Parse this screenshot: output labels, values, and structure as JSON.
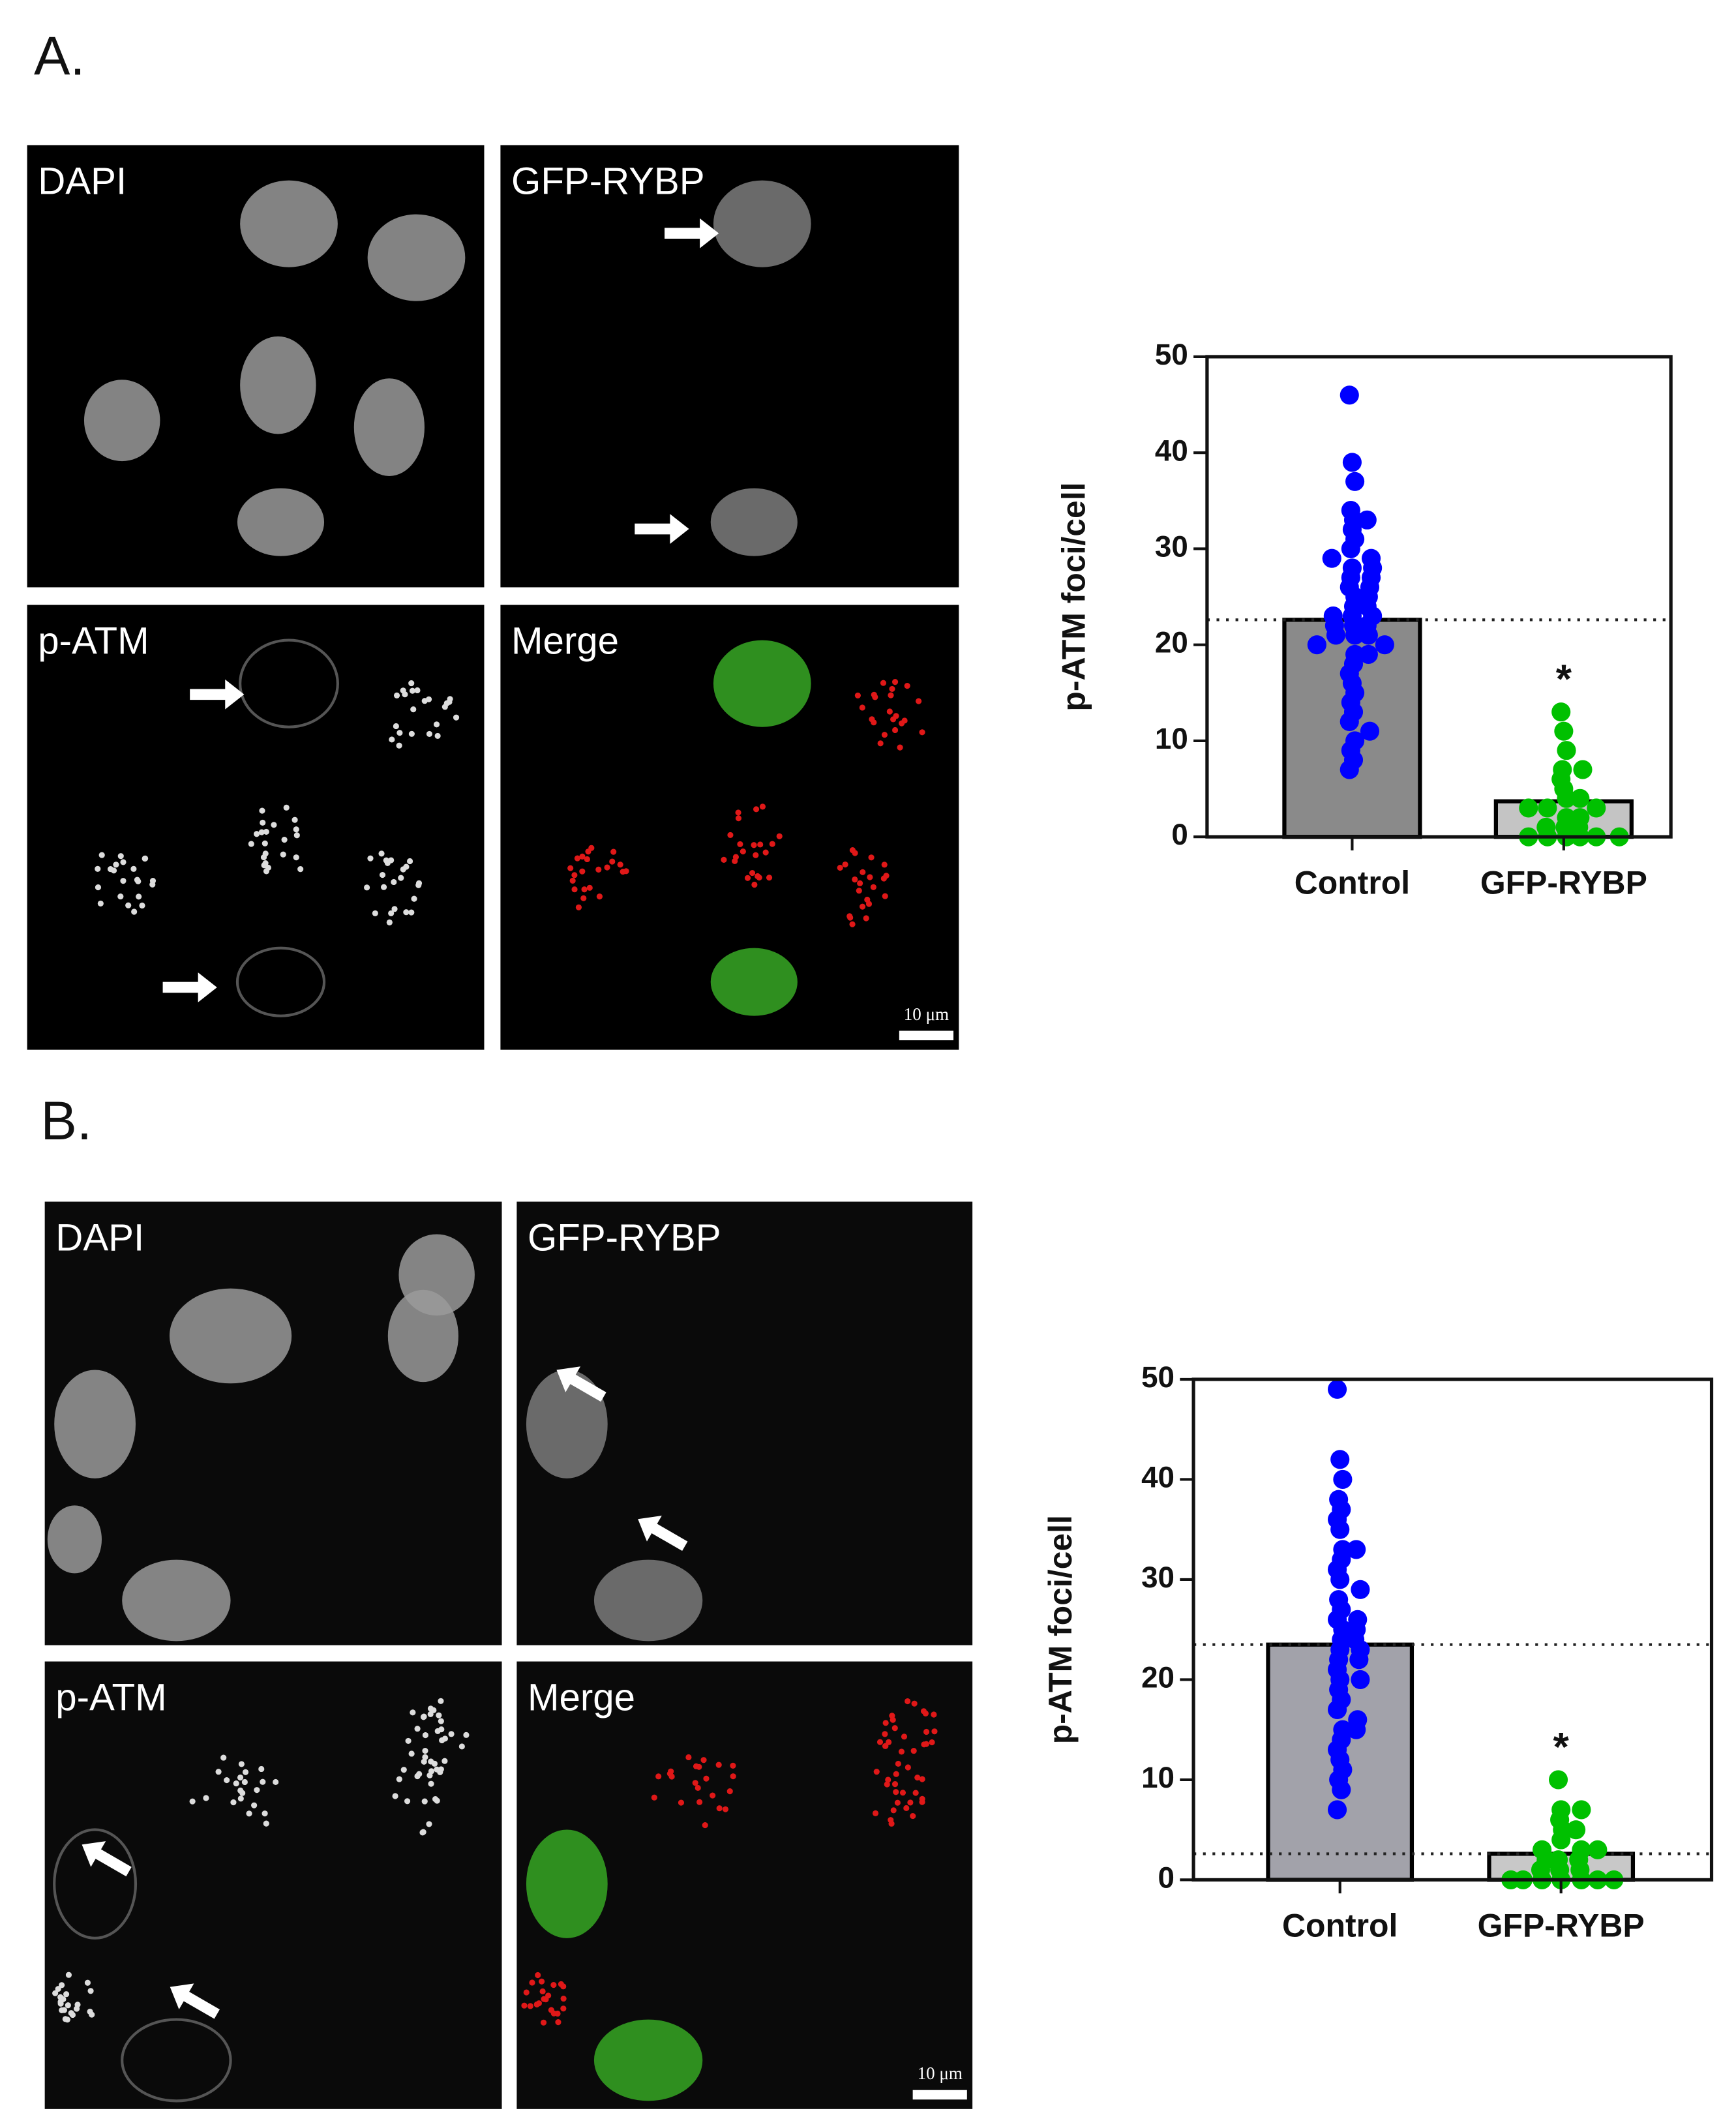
{
  "panels": [
    {
      "label": "A.",
      "images": [
        "DAPI",
        "GFP-RYBP",
        "p-ATM",
        "Merge"
      ],
      "scale_bar": "10 μm"
    },
    {
      "label": "B.",
      "images": [
        "DAPI",
        "GFP-RYBP",
        "p-ATM",
        "Merge"
      ],
      "scale_bar": "10 μm"
    }
  ],
  "chart_data": [
    {
      "type": "bar",
      "ylabel": "p-ATM foci/cell",
      "categories": [
        "Control",
        "GFP-RYBP"
      ],
      "values": [
        22.6,
        3.7
      ],
      "bar_colors": [
        "#8a8a8a",
        "#c4c4c4"
      ],
      "points": [
        [
          46,
          39,
          37,
          34,
          33,
          33,
          32,
          31,
          30,
          29,
          29,
          28,
          28,
          27,
          27,
          26,
          26,
          25,
          25,
          24,
          24,
          23,
          23,
          23,
          22,
          22,
          22,
          21,
          21,
          21,
          20,
          20,
          19,
          19,
          18,
          17,
          16,
          15,
          14,
          13,
          12,
          11,
          10,
          9,
          8,
          7
        ],
        [
          13,
          11,
          9,
          7,
          7,
          6,
          5,
          4,
          4,
          3,
          3,
          3,
          2,
          2,
          1,
          1,
          1,
          0,
          0,
          0,
          0,
          0,
          0
        ]
      ],
      "point_colors": [
        "#0000ff",
        "#00c000"
      ],
      "reference_lines": [
        22.6
      ],
      "annotation": "*",
      "ylim": [
        0,
        50
      ],
      "yticks": [
        0,
        10,
        20,
        30,
        40,
        50
      ]
    },
    {
      "type": "bar",
      "ylabel": "p-ATM foci/cell",
      "categories": [
        "Control",
        "GFP-RYBP"
      ],
      "values": [
        23.5,
        2.6
      ],
      "bar_colors": [
        "#a2a2aa",
        "#c8c8c8"
      ],
      "points": [
        [
          49,
          42,
          40,
          38,
          37,
          36,
          35,
          33,
          33,
          32,
          31,
          30,
          29,
          28,
          27,
          26,
          26,
          25,
          25,
          24,
          24,
          23,
          23,
          22,
          22,
          21,
          20,
          20,
          19,
          18,
          17,
          16,
          15,
          15,
          14,
          13,
          12,
          11,
          10,
          9,
          7
        ],
        [
          10,
          7,
          7,
          6,
          5,
          5,
          4,
          3,
          3,
          3,
          2,
          2,
          2,
          1,
          1,
          1,
          0,
          0,
          0,
          0,
          0,
          0,
          0
        ]
      ],
      "point_colors": [
        "#0000ff",
        "#00c000"
      ],
      "reference_lines": [
        23.5,
        2.6
      ],
      "annotation": "*",
      "ylim": [
        0,
        50
      ],
      "yticks": [
        0,
        10,
        20,
        30,
        40,
        50
      ]
    }
  ]
}
